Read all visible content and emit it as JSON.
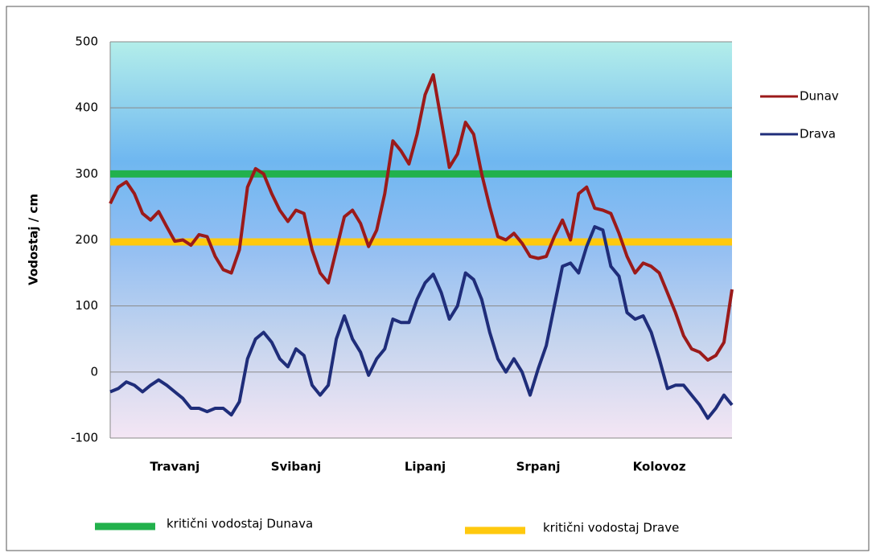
{
  "chart_data": {
    "type": "line",
    "ylabel": "Vodostaj / cm",
    "categories": [
      null,
      null,
      null,
      null,
      null,
      null,
      null,
      null,
      "Travanj",
      null,
      null,
      null,
      null,
      null,
      null,
      null,
      null,
      null,
      null,
      null,
      null,
      null,
      null,
      "Svibanj",
      null,
      null,
      null,
      null,
      null,
      null,
      null,
      null,
      null,
      null,
      null,
      null,
      null,
      null,
      null,
      "Lipanj",
      null,
      null,
      null,
      null,
      null,
      null,
      null,
      null,
      null,
      null,
      null,
      null,
      null,
      "Srpanj",
      null,
      null,
      null,
      null,
      null,
      null,
      null,
      null,
      null,
      null,
      null,
      null,
      null,
      null,
      "Kolovoz",
      null,
      null,
      null,
      null,
      null,
      null,
      null,
      null,
      null
    ],
    "series": [
      {
        "name": "Dunav",
        "color": "#9b1a1a",
        "values": [
          255,
          280,
          288,
          270,
          240,
          230,
          243,
          220,
          198,
          200,
          192,
          208,
          205,
          175,
          155,
          150,
          185,
          280,
          308,
          300,
          270,
          245,
          228,
          245,
          240,
          185,
          150,
          135,
          185,
          235,
          245,
          225,
          190,
          215,
          270,
          350,
          335,
          315,
          360,
          420,
          450,
          380,
          310,
          330,
          378,
          360,
          300,
          250,
          205,
          200,
          210,
          195,
          175,
          172,
          175,
          205,
          230,
          200,
          270,
          280,
          248,
          245,
          240,
          210,
          175,
          150,
          165,
          160,
          150,
          120,
          90,
          55,
          35,
          30,
          18,
          25,
          45,
          125
        ]
      },
      {
        "name": "Drava",
        "color": "#1f2d7a",
        "values": [
          -30,
          -25,
          -15,
          -20,
          -30,
          -20,
          -12,
          -20,
          -30,
          -40,
          -55,
          -55,
          -60,
          -55,
          -55,
          -65,
          -45,
          20,
          50,
          60,
          45,
          20,
          8,
          35,
          25,
          -20,
          -35,
          -20,
          50,
          85,
          50,
          30,
          -5,
          20,
          35,
          80,
          75,
          75,
          110,
          135,
          148,
          120,
          80,
          100,
          150,
          140,
          110,
          60,
          20,
          0,
          20,
          0,
          -35,
          5,
          40,
          100,
          160,
          165,
          150,
          190,
          220,
          215,
          160,
          145,
          90,
          80,
          85,
          60,
          20,
          -25,
          -20,
          -20,
          -35,
          -50,
          -70,
          -55,
          -35,
          -50
        ]
      }
    ],
    "thresholds": [
      {
        "name": "kritični vodostaj Dunava",
        "color": "#22b14c",
        "value": 300
      },
      {
        "name": "kritični vodostaj Drave",
        "color": "#ffc90e",
        "value": 197
      }
    ],
    "ylim": [
      -100,
      500
    ],
    "yticks": [
      -100,
      0,
      100,
      200,
      300,
      400,
      500
    ],
    "grid": true
  }
}
